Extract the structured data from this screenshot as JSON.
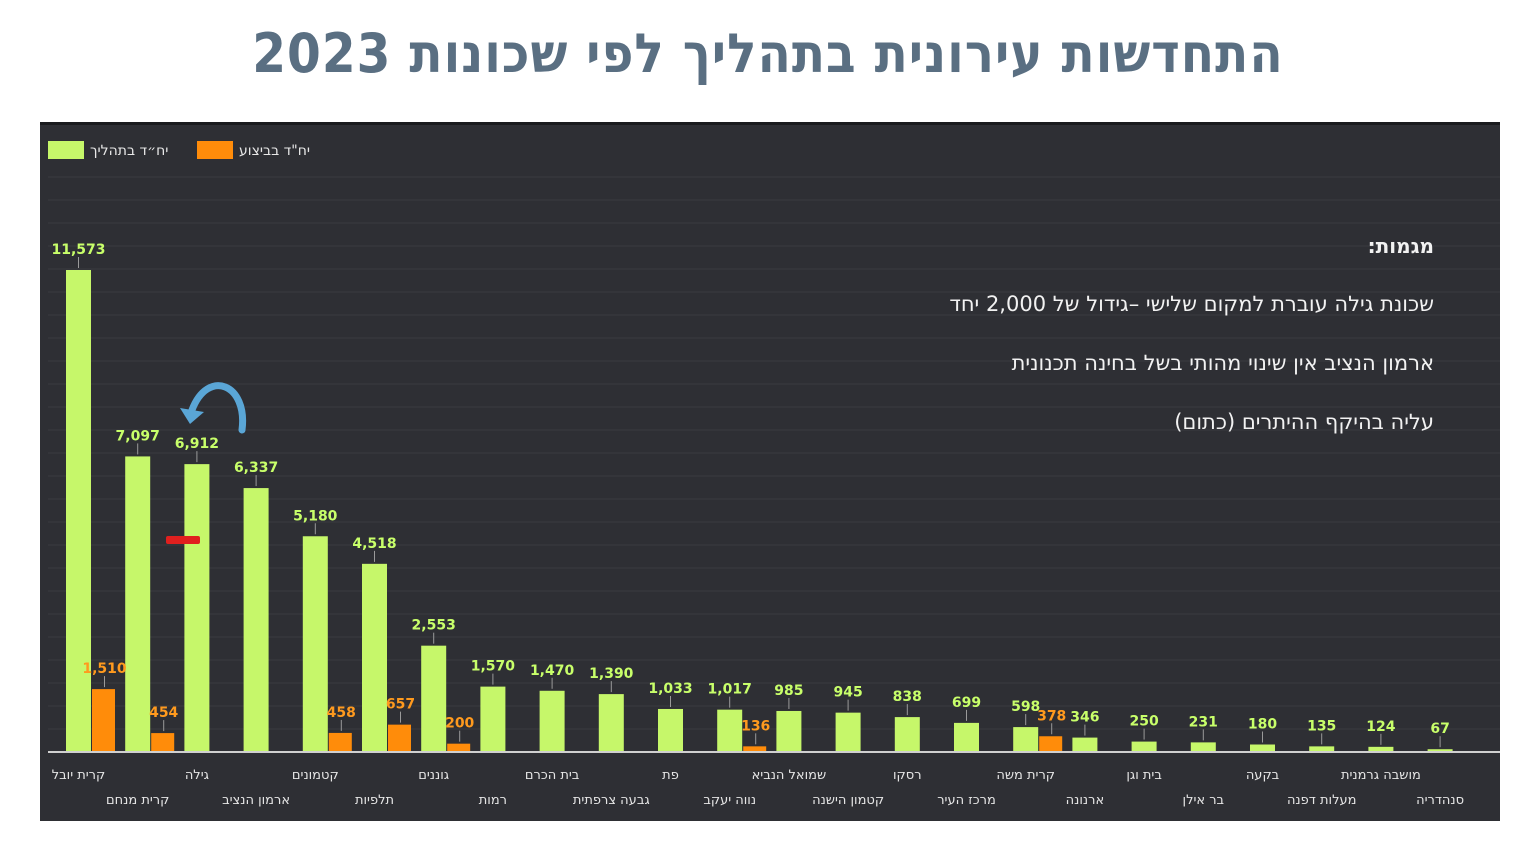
{
  "page": {
    "title": "התחדשות עירונית בתהליך לפי שכונות 2023"
  },
  "chart_data": {
    "type": "bar",
    "title": "התחדשות עירונית בתהליך לפי שכונות 2023",
    "categories": [
      "קרית יובל",
      "קרית מנחם",
      "גילה",
      "ארמון הנציב",
      "קטמונים",
      "תלפיות",
      "גוננים",
      "רמות",
      "בית הכרם",
      "גבעה צרפתית",
      "פת",
      "נווה יעקב",
      "שמואל הנביא",
      "קטמון הישנה",
      "רסקו",
      "מרכז העיר",
      "קרית משה",
      "ארנונה",
      "בית וגן",
      "בר אילן",
      "בקעה",
      "מעלות דפנה",
      "מושבה גרמנית",
      "סנהדריה"
    ],
    "series": [
      {
        "name": "יח״ד בתהליך",
        "color": "#c6f76a",
        "values": [
          11573,
          7097,
          6912,
          6337,
          5180,
          4518,
          2553,
          1570,
          1470,
          1390,
          1033,
          1017,
          985,
          945,
          838,
          699,
          598,
          346,
          250,
          231,
          180,
          135,
          124,
          67
        ],
        "labels": [
          "11,573",
          "7,097",
          "6,912",
          "6,337",
          "5,180",
          "4,518",
          "2,553",
          "1,570",
          "1,470",
          "1,390",
          "1,033",
          "1,017",
          "985",
          "945",
          "838",
          "699",
          "598",
          "346",
          "250",
          "231",
          "180",
          "135",
          "124",
          "67"
        ]
      },
      {
        "name": "יח\"ד בביצוע",
        "color": "#ff8c0a",
        "values": [
          1510,
          454,
          null,
          null,
          458,
          657,
          200,
          null,
          null,
          null,
          null,
          136,
          null,
          null,
          null,
          null,
          378,
          null,
          null,
          null,
          null,
          null,
          null,
          null
        ],
        "labels": [
          "1,510",
          "454",
          null,
          null,
          "458",
          "657",
          "200",
          null,
          null,
          null,
          null,
          "136",
          null,
          null,
          null,
          null,
          "378",
          null,
          null,
          null,
          null,
          null,
          null,
          null
        ]
      }
    ],
    "ylim": [
      0,
      13000
    ],
    "grid": true,
    "legend_position": "top-left"
  },
  "annotations": {
    "title": "מגמות:",
    "lines": [
      "שכונת גילה עוברת למקום שלישי –גידול של 2,000 יחד",
      "ארמון הנציב אין שינוי מהותי בשל בחינה תכנונית",
      "עליה בהיקף ההיתרים (כתום)"
    ]
  },
  "colors": {
    "in_process": "#c6f76a",
    "in_execution": "#ff8c0a",
    "marker": "#e0201e",
    "arrow": "#5aa6d6"
  }
}
